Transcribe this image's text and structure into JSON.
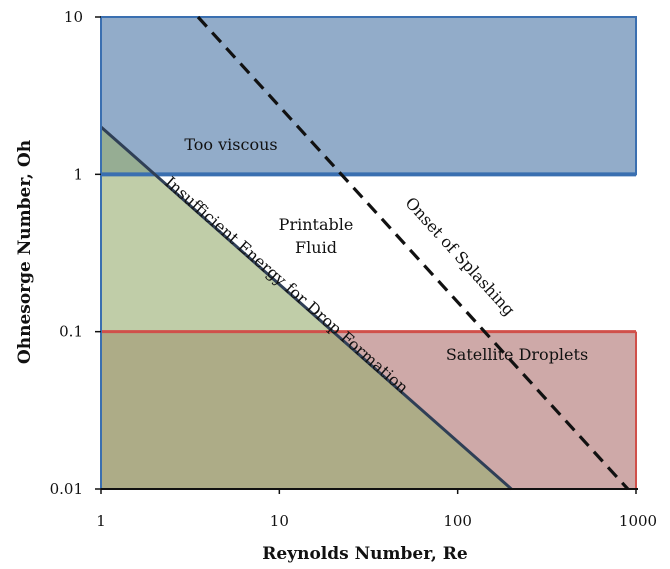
{
  "chart_data": {
    "type": "area",
    "title": "",
    "xlabel": "Reynolds Number, Re",
    "ylabel": "Ohnesorge Number, Oh",
    "xscale": "log",
    "yscale": "log",
    "xlim": [
      1,
      1000
    ],
    "ylim": [
      0.01,
      10
    ],
    "grid": false,
    "x_ticks": [
      {
        "value": 1,
        "label": "1"
      },
      {
        "value": 10,
        "label": "10"
      },
      {
        "value": 100,
        "label": "100"
      },
      {
        "value": 1000,
        "label": "1000"
      }
    ],
    "y_ticks": [
      {
        "value": 0.01,
        "label": "0.01"
      },
      {
        "value": 0.1,
        "label": "0.1"
      },
      {
        "value": 1,
        "label": "1"
      },
      {
        "value": 10,
        "label": "10"
      }
    ],
    "regions": [
      {
        "label": "Too viscous",
        "x_range": [
          1,
          1000
        ],
        "oh_range": [
          1,
          10
        ],
        "fill": "#7f9ec0",
        "edge": "#3a6fb0"
      },
      {
        "label": "Satellite Droplets",
        "x_range": [
          1,
          1000
        ],
        "oh_range": [
          0.01,
          0.1
        ],
        "fill": "#c69a99",
        "edge": "#d0504a"
      },
      {
        "label": "Insufficient Energy for Drop Formation",
        "points": [
          [
            1,
            2
          ],
          [
            200,
            0.01
          ],
          [
            1,
            0.01
          ]
        ],
        "fill": "#9aae72",
        "edge": "#2f3f56"
      },
      {
        "label": "Printable Fluid",
        "x_range": [
          1,
          1000
        ],
        "oh_range": [
          0.1,
          1
        ],
        "fill": "#ffffff",
        "edge": ""
      }
    ],
    "lines": [
      {
        "label": "Onset of Splashing",
        "style": "dashed",
        "color": "#111111",
        "points": [
          [
            3.5,
            10
          ],
          [
            900,
            0.01
          ]
        ]
      }
    ]
  }
}
